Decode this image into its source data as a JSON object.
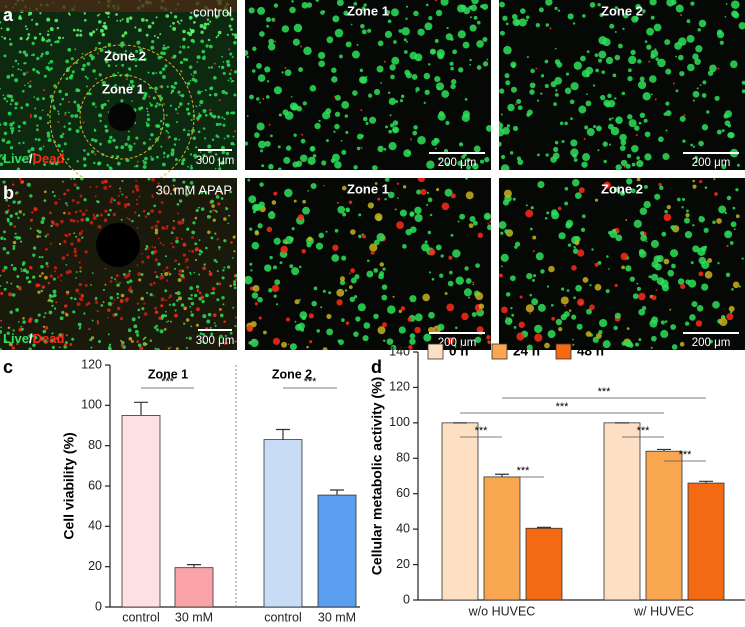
{
  "panel_letters": [
    "a",
    "b",
    "c",
    "d"
  ],
  "images": [
    {
      "label": "control",
      "zone_outer": "Zone 2",
      "zone_inner": "Zone 1",
      "live": "Live",
      "slash": "/",
      "dead": "Dead",
      "scale": "300 μm"
    },
    {
      "label": "Zone 1",
      "scale": "200 μm"
    },
    {
      "label": "Zone 2",
      "scale": "200 μm"
    },
    {
      "label": "30 mM APAP",
      "live": "Live",
      "slash": "/",
      "dead": "Dead",
      "scale": "300 μm"
    },
    {
      "label": "Zone 1",
      "scale": "200 μm"
    },
    {
      "label": "Zone 2",
      "scale": "200 μm"
    }
  ],
  "chart_data": [
    {
      "type": "bar",
      "ylabel": "Cell viability  (%)",
      "groups": [
        "Zone 1",
        "Zone 2"
      ],
      "categories": [
        "control",
        "30 mM",
        "control",
        "30 mM"
      ],
      "values": [
        95,
        19.5,
        83,
        55.5
      ],
      "errors": [
        6.5,
        1.5,
        5,
        2.5
      ],
      "colors": [
        "#fde0e4",
        "#f9a3a8",
        "#c9dcf5",
        "#5a9ef0"
      ],
      "annotations": [
        "***",
        "***"
      ],
      "ylim": [
        0,
        120
      ],
      "yticks": [
        0,
        20,
        40,
        60,
        80,
        100,
        120
      ]
    },
    {
      "type": "grouped_bar",
      "ylabel": "Cellular metabolic activity (%)",
      "categories": [
        "w/o HUVEC",
        "w/ HUVEC"
      ],
      "series": [
        {
          "name": "0 h",
          "color": "#fde0c4",
          "values": [
            100,
            100
          ],
          "errors": [
            0,
            0
          ]
        },
        {
          "name": "24 h",
          "color": "#f9a650",
          "values": [
            69.5,
            84
          ],
          "errors": [
            1.5,
            1
          ]
        },
        {
          "name": "48 h",
          "color": "#f46a12",
          "values": [
            40.5,
            66
          ],
          "errors": [
            0.5,
            1
          ]
        }
      ],
      "annotations": [
        "***",
        "***",
        "***",
        "***",
        "***",
        "***"
      ],
      "legend": "top-left",
      "ylim": [
        0,
        140
      ],
      "yticks": [
        0,
        20,
        40,
        60,
        80,
        100,
        120,
        140
      ]
    }
  ]
}
